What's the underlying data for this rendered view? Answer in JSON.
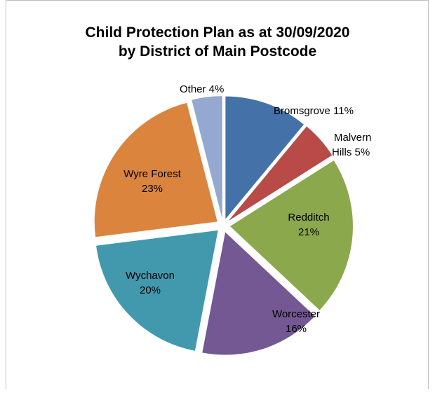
{
  "chart_data": {
    "type": "pie",
    "title_line1": "Child Protection Plan as at 30/09/2020",
    "title_line2": "by District of Main Postcode",
    "slices": [
      {
        "name": "Bromsgrove",
        "value": 11,
        "label": "Bromsgrove 11%",
        "color": "#4472a8"
      },
      {
        "name": "Malvern Hills",
        "value": 5,
        "label_line1": "Malvern",
        "label_line2": "Hills 5%",
        "color": "#b84a48"
      },
      {
        "name": "Redditch",
        "value": 21,
        "label_line1": "Redditch",
        "label_line2": "21%",
        "color": "#8ba84d"
      },
      {
        "name": "Worcester",
        "value": 16,
        "label_line1": "Worcester",
        "label_line2": "16%",
        "color": "#735893"
      },
      {
        "name": "Wychavon",
        "value": 20,
        "label_line1": "Wychavon",
        "label_line2": "20%",
        "color": "#4299ae"
      },
      {
        "name": "Wyre Forest",
        "value": 23,
        "label_line1": "Wyre Forest",
        "label_line2": "23%",
        "color": "#db843d"
      },
      {
        "name": "Other",
        "value": 4,
        "label": "Other 4%",
        "color": "#94a8d0"
      }
    ]
  }
}
